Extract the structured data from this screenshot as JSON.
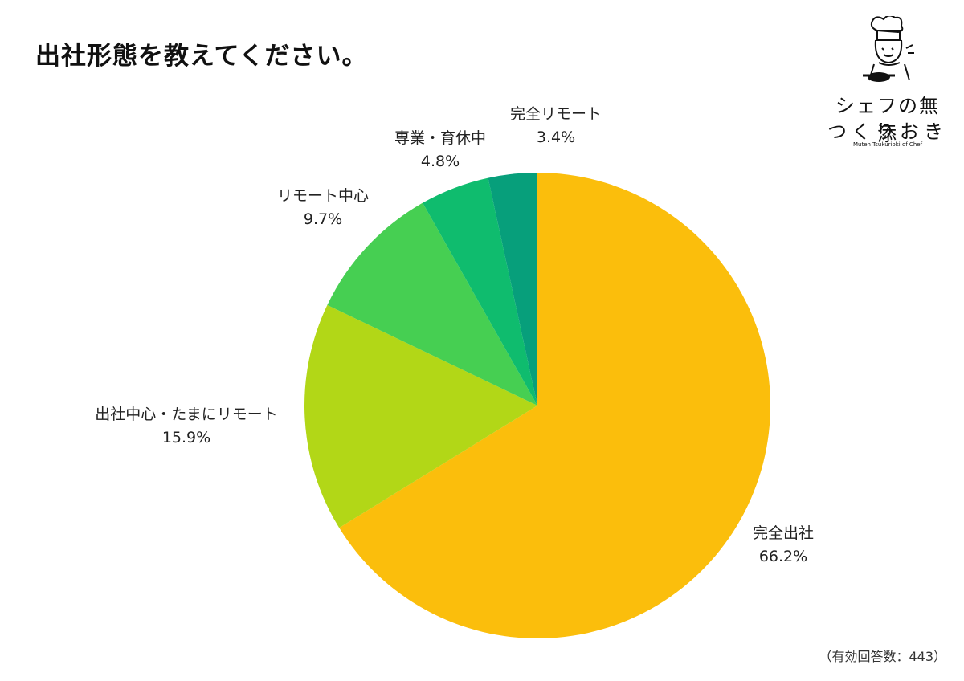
{
  "title": "出社形態を教えてください。",
  "note": "（有効回答数：443）",
  "logo": {
    "line1": "シェフの無添",
    "line2": "つくりおき",
    "sub": "Muten Tsukurioki of Chef"
  },
  "chart_data": {
    "type": "pie",
    "start_angle_deg": 0,
    "direction": "clockwise",
    "slices": [
      {
        "label": "完全出社",
        "value": 66.2,
        "value_label": "66.2%",
        "color": "#FBBE0C"
      },
      {
        "label": "出社中心・たまにリモート",
        "value": 15.9,
        "value_label": "15.9%",
        "color": "#B2D717"
      },
      {
        "label": "リモート中心",
        "value": 9.7,
        "value_label": "9.7%",
        "color": "#46CF52"
      },
      {
        "label": "専業・育休中",
        "value": 4.8,
        "value_label": "4.8%",
        "color": "#0FBC6E"
      },
      {
        "label": "完全リモート",
        "value": 3.4,
        "value_label": "3.4%",
        "color": "#079F7B"
      }
    ]
  }
}
